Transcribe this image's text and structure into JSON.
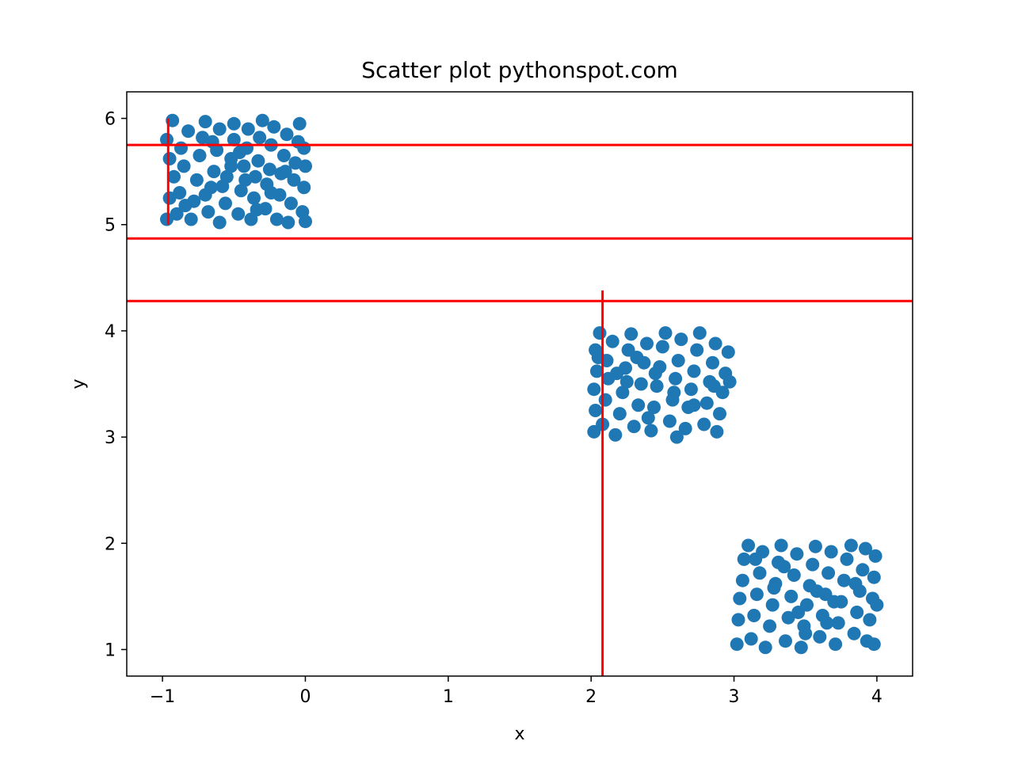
{
  "chart_data": {
    "type": "scatter",
    "title": "Scatter plot pythonspot.com",
    "xlabel": "x",
    "ylabel": "y",
    "xlim": [
      -1.25,
      4.25
    ],
    "ylim": [
      0.75,
      6.25
    ],
    "xticks": [
      -1,
      0,
      1,
      2,
      3,
      4
    ],
    "yticks": [
      1,
      2,
      3,
      4,
      5,
      6
    ],
    "xtick_labels": [
      "−1",
      "0",
      "1",
      "2",
      "3",
      "4"
    ],
    "ytick_labels": [
      "1",
      "2",
      "3",
      "4",
      "5",
      "6"
    ],
    "grid": false,
    "point_color": "#1f77b4",
    "line_color": "#ff0000",
    "series": [
      {
        "points": [
          [
            -0.97,
            5.05
          ],
          [
            -0.95,
            5.25
          ],
          [
            -0.92,
            5.45
          ],
          [
            -0.95,
            5.62
          ],
          [
            -0.97,
            5.8
          ],
          [
            -0.93,
            5.98
          ],
          [
            -0.9,
            5.1
          ],
          [
            -0.88,
            5.3
          ],
          [
            -0.85,
            5.55
          ],
          [
            -0.87,
            5.72
          ],
          [
            -0.82,
            5.88
          ],
          [
            -0.8,
            5.05
          ],
          [
            -0.78,
            5.22
          ],
          [
            -0.76,
            5.42
          ],
          [
            -0.74,
            5.65
          ],
          [
            -0.72,
            5.82
          ],
          [
            -0.7,
            5.97
          ],
          [
            -0.68,
            5.12
          ],
          [
            -0.66,
            5.35
          ],
          [
            -0.64,
            5.5
          ],
          [
            -0.62,
            5.7
          ],
          [
            -0.6,
            5.9
          ],
          [
            -0.6,
            5.02
          ],
          [
            -0.56,
            5.2
          ],
          [
            -0.55,
            5.45
          ],
          [
            -0.52,
            5.62
          ],
          [
            -0.5,
            5.8
          ],
          [
            -0.5,
            5.95
          ],
          [
            -0.47,
            5.1
          ],
          [
            -0.45,
            5.32
          ],
          [
            -0.43,
            5.55
          ],
          [
            -0.41,
            5.72
          ],
          [
            -0.4,
            5.9
          ],
          [
            -0.38,
            5.05
          ],
          [
            -0.36,
            5.25
          ],
          [
            -0.35,
            5.45
          ],
          [
            -0.33,
            5.6
          ],
          [
            -0.32,
            5.82
          ],
          [
            -0.3,
            5.98
          ],
          [
            -0.28,
            5.15
          ],
          [
            -0.27,
            5.38
          ],
          [
            -0.25,
            5.52
          ],
          [
            -0.24,
            5.75
          ],
          [
            -0.22,
            5.92
          ],
          [
            -0.2,
            5.05
          ],
          [
            -0.18,
            5.28
          ],
          [
            -0.17,
            5.48
          ],
          [
            -0.15,
            5.65
          ],
          [
            -0.13,
            5.85
          ],
          [
            -0.12,
            5.02
          ],
          [
            -0.1,
            5.2
          ],
          [
            -0.08,
            5.42
          ],
          [
            -0.07,
            5.58
          ],
          [
            -0.05,
            5.78
          ],
          [
            -0.04,
            5.95
          ],
          [
            -0.02,
            5.12
          ],
          [
            -0.01,
            5.35
          ],
          [
            0.0,
            5.55
          ],
          [
            -0.01,
            5.72
          ],
          [
            0.0,
            5.03
          ],
          [
            -0.84,
            5.18
          ],
          [
            -0.7,
            5.28
          ],
          [
            -0.58,
            5.36
          ],
          [
            -0.46,
            5.68
          ],
          [
            -0.34,
            5.14
          ],
          [
            -0.24,
            5.3
          ],
          [
            -0.14,
            5.5
          ],
          [
            -0.65,
            5.78
          ],
          [
            -0.52,
            5.55
          ],
          [
            -0.42,
            5.42
          ]
        ]
      },
      {
        "points": [
          [
            2.02,
            3.05
          ],
          [
            2.03,
            3.25
          ],
          [
            2.02,
            3.45
          ],
          [
            2.04,
            3.62
          ],
          [
            2.03,
            3.82
          ],
          [
            2.06,
            3.98
          ],
          [
            2.08,
            3.12
          ],
          [
            2.1,
            3.35
          ],
          [
            2.12,
            3.55
          ],
          [
            2.11,
            3.72
          ],
          [
            2.15,
            3.9
          ],
          [
            2.17,
            3.02
          ],
          [
            2.2,
            3.22
          ],
          [
            2.22,
            3.42
          ],
          [
            2.24,
            3.65
          ],
          [
            2.26,
            3.82
          ],
          [
            2.28,
            3.97
          ],
          [
            2.3,
            3.1
          ],
          [
            2.33,
            3.3
          ],
          [
            2.35,
            3.5
          ],
          [
            2.37,
            3.7
          ],
          [
            2.39,
            3.88
          ],
          [
            2.42,
            3.06
          ],
          [
            2.44,
            3.28
          ],
          [
            2.46,
            3.48
          ],
          [
            2.48,
            3.66
          ],
          [
            2.5,
            3.85
          ],
          [
            2.52,
            3.98
          ],
          [
            2.55,
            3.15
          ],
          [
            2.57,
            3.35
          ],
          [
            2.59,
            3.55
          ],
          [
            2.61,
            3.72
          ],
          [
            2.63,
            3.92
          ],
          [
            2.66,
            3.08
          ],
          [
            2.68,
            3.28
          ],
          [
            2.7,
            3.45
          ],
          [
            2.72,
            3.62
          ],
          [
            2.74,
            3.82
          ],
          [
            2.76,
            3.98
          ],
          [
            2.79,
            3.12
          ],
          [
            2.81,
            3.32
          ],
          [
            2.83,
            3.52
          ],
          [
            2.85,
            3.7
          ],
          [
            2.87,
            3.88
          ],
          [
            2.88,
            3.05
          ],
          [
            2.9,
            3.22
          ],
          [
            2.92,
            3.42
          ],
          [
            2.94,
            3.6
          ],
          [
            2.96,
            3.8
          ],
          [
            2.97,
            3.52
          ],
          [
            2.05,
            3.75
          ],
          [
            2.18,
            3.6
          ],
          [
            2.32,
            3.75
          ],
          [
            2.45,
            3.6
          ],
          [
            2.58,
            3.42
          ],
          [
            2.72,
            3.3
          ],
          [
            2.86,
            3.48
          ],
          [
            2.6,
            3.0
          ],
          [
            2.4,
            3.18
          ],
          [
            2.25,
            3.52
          ]
        ]
      },
      {
        "points": [
          [
            3.02,
            1.05
          ],
          [
            3.03,
            1.28
          ],
          [
            3.04,
            1.48
          ],
          [
            3.06,
            1.65
          ],
          [
            3.07,
            1.85
          ],
          [
            3.1,
            1.98
          ],
          [
            3.12,
            1.1
          ],
          [
            3.14,
            1.32
          ],
          [
            3.16,
            1.52
          ],
          [
            3.18,
            1.72
          ],
          [
            3.2,
            1.92
          ],
          [
            3.22,
            1.02
          ],
          [
            3.25,
            1.22
          ],
          [
            3.27,
            1.42
          ],
          [
            3.29,
            1.62
          ],
          [
            3.31,
            1.82
          ],
          [
            3.33,
            1.98
          ],
          [
            3.36,
            1.08
          ],
          [
            3.38,
            1.3
          ],
          [
            3.4,
            1.5
          ],
          [
            3.42,
            1.7
          ],
          [
            3.44,
            1.9
          ],
          [
            3.47,
            1.02
          ],
          [
            3.49,
            1.22
          ],
          [
            3.51,
            1.42
          ],
          [
            3.53,
            1.6
          ],
          [
            3.55,
            1.8
          ],
          [
            3.57,
            1.97
          ],
          [
            3.6,
            1.12
          ],
          [
            3.62,
            1.32
          ],
          [
            3.64,
            1.52
          ],
          [
            3.66,
            1.72
          ],
          [
            3.68,
            1.92
          ],
          [
            3.71,
            1.05
          ],
          [
            3.73,
            1.25
          ],
          [
            3.75,
            1.45
          ],
          [
            3.77,
            1.65
          ],
          [
            3.79,
            1.85
          ],
          [
            3.82,
            1.98
          ],
          [
            3.84,
            1.15
          ],
          [
            3.86,
            1.35
          ],
          [
            3.88,
            1.55
          ],
          [
            3.9,
            1.75
          ],
          [
            3.92,
            1.95
          ],
          [
            3.93,
            1.08
          ],
          [
            3.95,
            1.28
          ],
          [
            3.97,
            1.48
          ],
          [
            3.98,
            1.68
          ],
          [
            3.99,
            1.88
          ],
          [
            4.0,
            1.42
          ],
          [
            3.98,
            1.05
          ],
          [
            3.15,
            1.85
          ],
          [
            3.28,
            1.58
          ],
          [
            3.45,
            1.35
          ],
          [
            3.58,
            1.55
          ],
          [
            3.7,
            1.45
          ],
          [
            3.85,
            1.62
          ],
          [
            3.5,
            1.15
          ],
          [
            3.35,
            1.78
          ],
          [
            3.65,
            1.25
          ]
        ]
      }
    ],
    "hlines": [
      5.75,
      4.87,
      4.28
    ],
    "vlines": [
      {
        "x": -0.96,
        "ymin": 5.0,
        "ymax": 6.0
      },
      {
        "x": 2.08,
        "ymin": 0.75,
        "ymax": 4.38
      }
    ]
  }
}
